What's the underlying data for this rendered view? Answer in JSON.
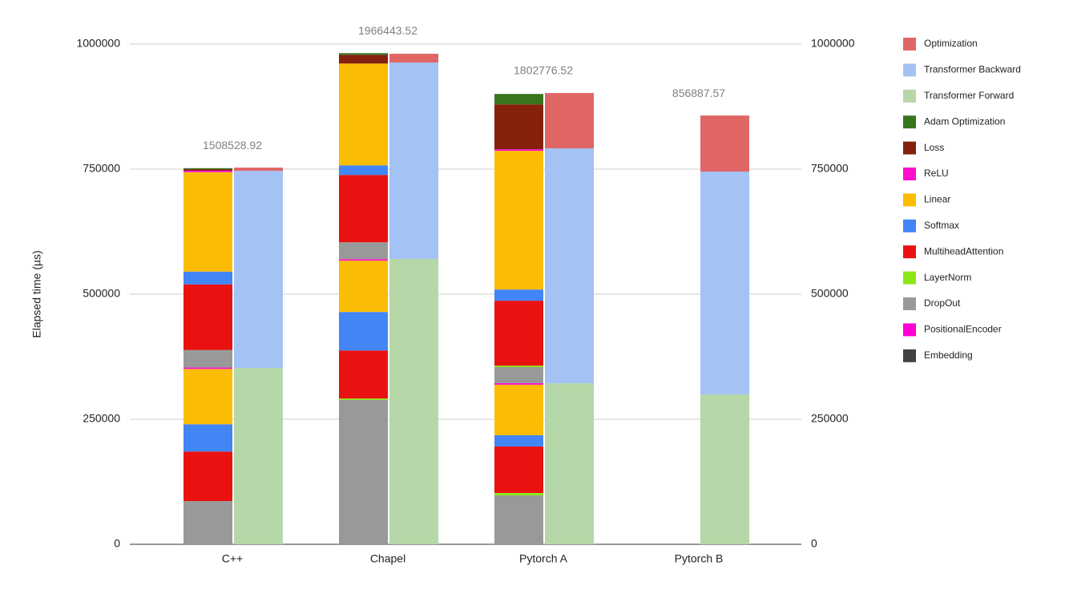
{
  "chart_data": {
    "type": "stacked_bar",
    "y_label": "Elapsed time (µs)",
    "categories": [
      "C++",
      "Chapel",
      "Pytorch A",
      "Pytorch B"
    ],
    "ylim": [
      0,
      1000000
    ],
    "yticks": [
      0,
      250000,
      500000,
      750000,
      1000000
    ],
    "y2lim": [
      0,
      1000000
    ],
    "y2ticks": [
      0,
      250000,
      500000,
      750000,
      1000000
    ],
    "grid": true,
    "legend": "right",
    "totals": [
      1508528.92,
      1966443.52,
      1802776.52,
      856887.57
    ],
    "series": [
      {
        "name": "Embedding",
        "color": "#424242",
        "stack": "left",
        "values": [
          0,
          0,
          0,
          null
        ]
      },
      {
        "name": "PositionalEncoder",
        "color": "#ff00d4",
        "stack": "left",
        "values": [
          0,
          0,
          0,
          null
        ]
      },
      {
        "name": "DropOut",
        "color": "#999999",
        "stack": "left",
        "values": [
          86500,
          288500,
          97800,
          null
        ]
      },
      {
        "name": "LayerNorm",
        "color": "#8de61a",
        "stack": "left",
        "values": [
          0,
          3000,
          4800,
          null
        ]
      },
      {
        "name": "MultiheadAttention",
        "color": "#ea1111",
        "stack": "left",
        "values": [
          99000,
          96000,
          93000,
          null
        ]
      },
      {
        "name": "Softmax",
        "color": "#4285f4",
        "stack": "left",
        "values": [
          54500,
          77000,
          22400,
          null
        ]
      },
      {
        "name": "Linear",
        "color": "#fbbc04",
        "stack": "left",
        "values": [
          110600,
          102600,
          101000,
          null
        ]
      },
      {
        "name": "ReLU",
        "color": "#ff0ecf",
        "stack": "left",
        "values": [
          3000,
          3000,
          3200,
          null
        ]
      },
      {
        "name": "DropOut",
        "color": "#999999",
        "stack": "left",
        "values": [
          35000,
          33700,
          32000,
          null
        ]
      },
      {
        "name": "LayerNorm",
        "color": "#8de61a",
        "stack": "left",
        "values": [
          0,
          0,
          3000,
          null
        ]
      },
      {
        "name": "MultiheadAttention",
        "color": "#ea1111",
        "stack": "left",
        "values": [
          131000,
          134600,
          129800,
          null
        ]
      },
      {
        "name": "Softmax",
        "color": "#4285f4",
        "stack": "left",
        "values": [
          25600,
          19200,
          22400,
          null
        ]
      },
      {
        "name": "Linear",
        "color": "#fbbc04",
        "stack": "left",
        "values": [
          198700,
          203500,
          277200,
          null
        ]
      },
      {
        "name": "ReLU",
        "color": "#ff0ecf",
        "stack": "left",
        "values": [
          3000,
          0,
          3200,
          null
        ]
      },
      {
        "name": "Loss",
        "color": "#85200c",
        "stack": "left",
        "values": [
          3000,
          17600,
          89700,
          null
        ]
      },
      {
        "name": "Adam Optimization",
        "color": "#38761d",
        "stack": "left",
        "values": [
          2000,
          3200,
          20800,
          null
        ]
      },
      {
        "name": "Transformer Forward",
        "color": "#b6d7a8",
        "stack": "right",
        "values": [
          352600,
          570500,
          322000,
          299700
        ]
      },
      {
        "name": "Transformer Backward",
        "color": "#a4c2f4",
        "stack": "right",
        "values": [
          394000,
          392600,
          469600,
          445500
        ]
      },
      {
        "name": "Optimization",
        "color": "#e06666",
        "stack": "right",
        "values": [
          6400,
          17600,
          110600,
          112000
        ]
      }
    ]
  }
}
